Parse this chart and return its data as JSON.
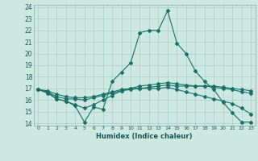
{
  "title": "",
  "xlabel": "Humidex (Indice chaleur)",
  "ylabel": "",
  "background_color": "#cce8e0",
  "line_color": "#1a7068",
  "grid_color": "#aaccc8",
  "xlim": [
    -0.5,
    23.5
  ],
  "ylim": [
    13.8,
    24.2
  ],
  "xticks": [
    0,
    1,
    2,
    3,
    4,
    5,
    6,
    7,
    8,
    9,
    10,
    11,
    12,
    13,
    14,
    15,
    16,
    17,
    18,
    19,
    20,
    21,
    22,
    23
  ],
  "yticks": [
    14,
    15,
    16,
    17,
    18,
    19,
    20,
    21,
    22,
    23,
    24
  ],
  "series": [
    [
      16.9,
      16.6,
      16.1,
      15.9,
      15.5,
      14.1,
      15.4,
      15.2,
      17.6,
      18.4,
      19.2,
      21.8,
      22.0,
      22.0,
      23.7,
      20.9,
      20.0,
      18.5,
      17.6,
      16.9,
      15.8,
      14.9,
      14.1,
      14.1
    ],
    [
      16.9,
      16.7,
      16.3,
      16.1,
      16.1,
      16.0,
      16.2,
      16.4,
      16.6,
      16.8,
      16.9,
      17.0,
      17.1,
      17.2,
      17.3,
      17.2,
      17.2,
      17.2,
      17.2,
      17.2,
      17.1,
      17.0,
      16.9,
      16.8
    ],
    [
      16.9,
      16.8,
      16.5,
      16.3,
      16.2,
      16.2,
      16.3,
      16.5,
      16.7,
      16.9,
      17.0,
      17.2,
      17.3,
      17.4,
      17.5,
      17.4,
      17.3,
      17.2,
      17.2,
      17.1,
      17.0,
      16.9,
      16.7,
      16.6
    ],
    [
      16.9,
      16.7,
      16.1,
      15.9,
      15.6,
      15.3,
      15.6,
      16.0,
      16.4,
      16.8,
      17.0,
      17.0,
      17.0,
      17.0,
      17.1,
      16.9,
      16.7,
      16.5,
      16.3,
      16.1,
      15.9,
      15.7,
      15.3,
      14.8
    ]
  ]
}
